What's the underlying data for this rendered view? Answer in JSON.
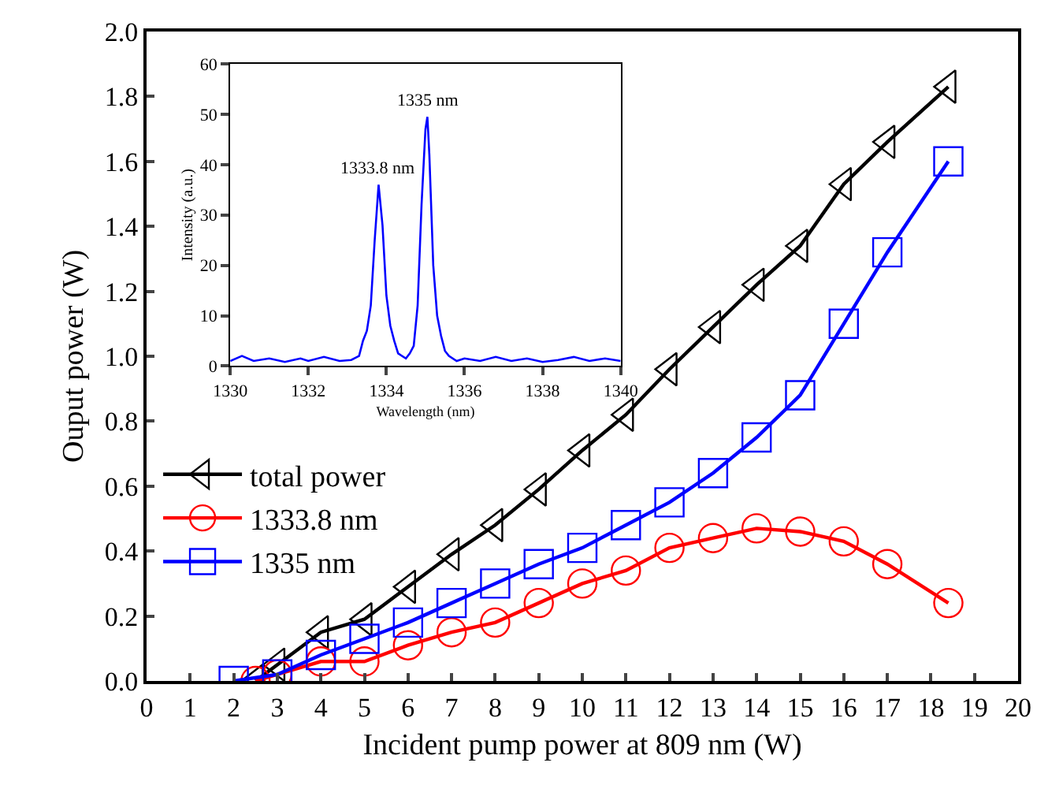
{
  "chart_data": [
    {
      "type": "line",
      "xlabel": "Incident pump power at 809 nm (W)",
      "ylabel": "Ouput power (W)",
      "xlim": [
        0,
        20
      ],
      "xticks": [
        0,
        1,
        2,
        3,
        4,
        5,
        6,
        7,
        8,
        9,
        10,
        11,
        12,
        13,
        14,
        15,
        16,
        17,
        18,
        19,
        20
      ],
      "ylim": [
        0,
        2.0
      ],
      "yticks": [
        {
          "value": 0,
          "label": "0.0"
        },
        {
          "value": 0.2,
          "label": "0.2"
        },
        {
          "value": 0.4,
          "label": "0.4"
        },
        {
          "value": 0.6,
          "label": "0.6"
        },
        {
          "value": 0.8,
          "label": "0.8"
        },
        {
          "value": 1.0,
          "label": "1.0"
        },
        {
          "value": 1.2,
          "label": "1.2"
        },
        {
          "value": 1.4,
          "label": "1.4"
        },
        {
          "value": 1.6,
          "label": "1.6"
        },
        {
          "value": 1.8,
          "label": "1.8"
        },
        {
          "value": 2.0,
          "label": "2.0"
        }
      ],
      "legend": "left",
      "line_style": "solid",
      "series": [
        {
          "name": "total power",
          "color": "#000000",
          "marker": "triangle",
          "x": [
            2.5,
            3,
            4,
            5,
            6,
            7,
            8,
            9,
            10,
            11,
            12,
            13,
            14,
            15,
            16,
            17,
            18.4
          ],
          "values": [
            0.0,
            0.05,
            0.15,
            0.19,
            0.29,
            0.39,
            0.48,
            0.59,
            0.71,
            0.82,
            0.96,
            1.09,
            1.22,
            1.34,
            1.53,
            1.66,
            1.83
          ]
        },
        {
          "name": "1333.8 nm",
          "color": "#ff0000",
          "marker": "circle",
          "x": [
            2.5,
            3,
            4,
            5,
            6,
            7,
            8,
            9,
            10,
            11,
            12,
            13,
            14,
            15,
            16,
            17,
            18.4
          ],
          "values": [
            0.0,
            0.02,
            0.06,
            0.06,
            0.11,
            0.15,
            0.18,
            0.24,
            0.3,
            0.34,
            0.41,
            0.44,
            0.47,
            0.46,
            0.43,
            0.36,
            0.24
          ]
        },
        {
          "name": "1335 nm",
          "color": "#0000ff",
          "marker": "square",
          "x": [
            2,
            3,
            4,
            5,
            6,
            7,
            8,
            9,
            10,
            11,
            12,
            13,
            14,
            15,
            16,
            17,
            18.4
          ],
          "values": [
            0.0,
            0.02,
            0.08,
            0.13,
            0.18,
            0.24,
            0.3,
            0.36,
            0.41,
            0.48,
            0.55,
            0.64,
            0.75,
            0.88,
            1.1,
            1.32,
            1.6
          ]
        }
      ]
    },
    {
      "type": "line",
      "xlabel": "Wavelength (nm)",
      "ylabel": "Intensity (a.u.)",
      "xlim": [
        1330,
        1340
      ],
      "xticks": [
        1330,
        1332,
        1334,
        1336,
        1338,
        1340
      ],
      "ylim": [
        0,
        60
      ],
      "yticks": [
        0,
        10,
        20,
        30,
        40,
        50,
        60
      ],
      "legend": false,
      "marker": "none",
      "annotations": [
        {
          "text": "1333.8 nm",
          "x": 1333.8,
          "y": 36
        },
        {
          "text": "1335 nm",
          "x": 1335.05,
          "y": 49.5
        }
      ],
      "series": [
        {
          "color": "#0000ff",
          "x": [
            1330,
            1330.3,
            1330.6,
            1331,
            1331.4,
            1331.8,
            1332,
            1332.4,
            1332.8,
            1333.1,
            1333.3,
            1333.4,
            1333.5,
            1333.6,
            1333.7,
            1333.8,
            1333.9,
            1334,
            1334.1,
            1334.2,
            1334.3,
            1334.5,
            1334.6,
            1334.7,
            1334.8,
            1334.9,
            1335,
            1335.05,
            1335.1,
            1335.2,
            1335.3,
            1335.4,
            1335.5,
            1335.6,
            1335.8,
            1336,
            1336.4,
            1336.8,
            1337.2,
            1337.6,
            1338,
            1338.4,
            1338.8,
            1339.2,
            1339.6,
            1340
          ],
          "values": [
            1,
            2,
            1,
            1.5,
            0.8,
            1.5,
            1,
            1.8,
            1,
            1.2,
            2,
            5,
            7,
            12,
            25,
            36,
            28,
            14,
            8,
            5,
            2.5,
            1.5,
            2.5,
            4,
            12,
            32,
            47,
            49.5,
            42,
            20,
            10,
            6,
            3,
            2,
            1,
            1.5,
            1,
            1.8,
            1,
            1.5,
            0.8,
            1.2,
            1.8,
            1,
            1.5,
            1
          ]
        }
      ]
    }
  ]
}
